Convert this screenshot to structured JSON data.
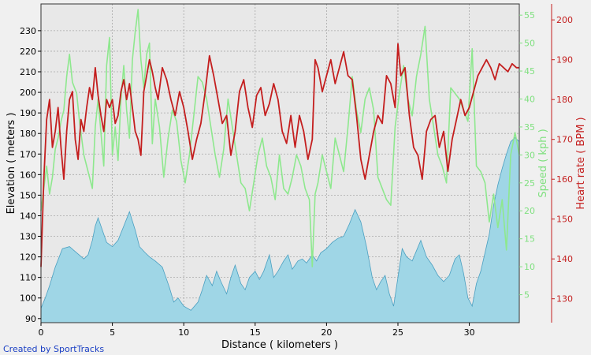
{
  "chart_data": {
    "type": "line",
    "xlabel": "Distance ( kilometers )",
    "xlim": [
      0,
      33.5
    ],
    "x_ticks": [
      0,
      5,
      10,
      15,
      20,
      25,
      30
    ],
    "grid": true,
    "axes": {
      "elevation": {
        "label": "Elevation ( meters )",
        "range": [
          88,
          243
        ],
        "ticks": [
          90,
          100,
          110,
          120,
          130,
          140,
          150,
          160,
          170,
          180,
          190,
          200,
          210,
          220,
          230
        ]
      },
      "speed": {
        "label": "Speed ( kph )",
        "range": [
          0,
          57
        ],
        "ticks": [
          5,
          10,
          15,
          20,
          25,
          30,
          35,
          40,
          45,
          50,
          55
        ]
      },
      "heart_rate": {
        "label": "Heart rate ( BPM )",
        "range": [
          124,
          204
        ],
        "ticks": [
          130,
          140,
          150,
          160,
          170,
          180,
          190,
          200
        ]
      }
    },
    "series": [
      {
        "key": "elevation",
        "kind": "area",
        "axis": "elevation",
        "color": "#9fd6e6",
        "line_color": "#4a9fc0",
        "x": [
          0,
          0.3,
          0.6,
          1.0,
          1.5,
          2.0,
          2.5,
          3.0,
          3.3,
          3.6,
          3.8,
          4.0,
          4.3,
          4.6,
          5.0,
          5.4,
          5.8,
          6.2,
          6.6,
          6.9,
          7.3,
          7.6,
          8.0,
          8.5,
          9.0,
          9.3,
          9.6,
          10.0,
          10.5,
          11.0,
          11.3,
          11.6,
          12.0,
          12.3,
          12.6,
          13.0,
          13.3,
          13.6,
          14.0,
          14.3,
          14.6,
          15.0,
          15.3,
          15.6,
          16.0,
          16.3,
          16.6,
          17.0,
          17.3,
          17.6,
          18.0,
          18.3,
          18.6,
          19.0,
          19.3,
          19.6,
          20.0,
          20.4,
          20.8,
          21.2,
          21.6,
          22.0,
          22.4,
          22.8,
          23.2,
          23.5,
          23.8,
          24.1,
          24.4,
          24.7,
          25.0,
          25.3,
          25.6,
          26.0,
          26.3,
          26.6,
          27.0,
          27.4,
          27.8,
          28.2,
          28.6,
          29.0,
          29.3,
          29.6,
          29.9,
          30.2,
          30.5,
          30.8,
          31.1,
          31.4,
          31.7,
          32.0,
          32.3,
          32.6,
          32.9,
          33.2,
          33.5
        ],
        "values": [
          95,
          100,
          106,
          115,
          124,
          125,
          122,
          119,
          121,
          128,
          135,
          139,
          133,
          127,
          125,
          128,
          135,
          142,
          133,
          125,
          122,
          120,
          118,
          115,
          105,
          98,
          100,
          96,
          94,
          98,
          104,
          111,
          106,
          113,
          108,
          102,
          110,
          116,
          107,
          104,
          110,
          113,
          109,
          113,
          121,
          110,
          113,
          118,
          121,
          114,
          118,
          119,
          117,
          121,
          118,
          122,
          124,
          127,
          129,
          130,
          136,
          143,
          137,
          125,
          110,
          104,
          108,
          111,
          102,
          96,
          110,
          124,
          120,
          118,
          123,
          128,
          120,
          116,
          111,
          108,
          111,
          119,
          121,
          112,
          100,
          96,
          107,
          113,
          122,
          131,
          145,
          155,
          163,
          170,
          176,
          178,
          176
        ]
      },
      {
        "key": "speed",
        "kind": "line",
        "axis": "speed",
        "color": "#8ee88e",
        "x": [
          0,
          0.2,
          0.4,
          0.6,
          0.8,
          1.0,
          1.2,
          1.4,
          1.6,
          1.8,
          2.0,
          2.2,
          2.5,
          2.7,
          3.0,
          3.2,
          3.4,
          3.6,
          3.8,
          4.0,
          4.2,
          4.4,
          4.6,
          4.8,
          5.0,
          5.2,
          5.4,
          5.6,
          5.8,
          6.0,
          6.2,
          6.4,
          6.6,
          6.8,
          7.0,
          7.2,
          7.4,
          7.6,
          7.8,
          8.0,
          8.3,
          8.6,
          8.9,
          9.2,
          9.5,
          9.8,
          10.1,
          10.4,
          10.7,
          11.0,
          11.3,
          11.6,
          11.9,
          12.2,
          12.5,
          12.8,
          13.1,
          13.4,
          13.7,
          14.0,
          14.3,
          14.6,
          14.9,
          15.2,
          15.5,
          15.8,
          16.1,
          16.4,
          16.7,
          17.0,
          17.3,
          17.6,
          17.9,
          18.2,
          18.5,
          18.8,
          19.0,
          19.2,
          19.4,
          19.7,
          20.0,
          20.3,
          20.6,
          20.9,
          21.2,
          21.5,
          21.8,
          22.1,
          22.4,
          22.7,
          23.0,
          23.3,
          23.6,
          23.9,
          24.2,
          24.5,
          24.8,
          25.1,
          25.4,
          25.7,
          26.0,
          26.3,
          26.6,
          26.9,
          27.2,
          27.5,
          27.8,
          28.1,
          28.4,
          28.7,
          29.0,
          29.3,
          29.6,
          29.9,
          30.2,
          30.5,
          30.8,
          31.1,
          31.4,
          31.7,
          32.0,
          32.3,
          32.6,
          32.9,
          33.2,
          33.5
        ],
        "values": [
          20,
          24,
          28,
          23,
          26,
          31,
          33,
          36,
          38,
          44,
          48,
          43,
          41,
          36,
          30,
          28,
          26,
          24,
          35,
          40,
          34,
          28,
          46,
          51,
          30,
          35,
          29,
          40,
          46,
          38,
          33,
          47,
          52,
          56,
          47,
          42,
          48,
          50,
          32,
          40,
          35,
          26,
          33,
          38,
          36,
          29,
          25,
          30,
          37,
          44,
          43,
          40,
          35,
          30,
          26,
          31,
          40,
          35,
          30,
          25,
          24,
          20,
          25,
          30,
          33,
          28,
          26,
          22,
          30,
          24,
          23,
          26,
          30,
          28,
          24,
          22,
          10,
          23,
          25,
          30,
          27,
          24,
          33,
          30,
          27,
          35,
          44,
          38,
          34,
          40,
          42,
          38,
          26,
          24,
          22,
          21,
          35,
          41,
          46,
          40,
          37,
          44,
          48,
          53,
          40,
          35,
          30,
          28,
          25,
          42,
          41,
          40,
          38,
          36,
          49,
          28,
          27,
          25,
          18,
          23,
          17,
          22,
          13,
          30,
          34,
          30
        ],
        "ticks_note": ""
      },
      {
        "key": "heart_rate",
        "kind": "line",
        "axis": "heart_rate",
        "color": "#c41e1e",
        "x": [
          0,
          0.2,
          0.4,
          0.6,
          0.8,
          1.0,
          1.2,
          1.4,
          1.6,
          1.8,
          2.0,
          2.2,
          2.4,
          2.6,
          2.8,
          3.0,
          3.2,
          3.4,
          3.6,
          3.8,
          4.0,
          4.2,
          4.4,
          4.6,
          4.8,
          5.0,
          5.2,
          5.4,
          5.6,
          5.8,
          6.0,
          6.2,
          6.4,
          6.6,
          6.8,
          7.0,
          7.2,
          7.4,
          7.6,
          7.8,
          8.0,
          8.2,
          8.5,
          8.8,
          9.1,
          9.4,
          9.7,
          10.0,
          10.3,
          10.6,
          10.9,
          11.2,
          11.5,
          11.8,
          12.1,
          12.4,
          12.7,
          13.0,
          13.3,
          13.6,
          13.9,
          14.2,
          14.5,
          14.8,
          15.1,
          15.4,
          15.7,
          16.0,
          16.3,
          16.6,
          16.9,
          17.2,
          17.5,
          17.8,
          18.1,
          18.4,
          18.7,
          19.0,
          19.2,
          19.4,
          19.7,
          20.0,
          20.3,
          20.6,
          20.9,
          21.2,
          21.5,
          21.8,
          22.1,
          22.4,
          22.7,
          23.0,
          23.3,
          23.6,
          23.9,
          24.2,
          24.5,
          24.8,
          25.0,
          25.2,
          25.5,
          25.8,
          26.1,
          26.4,
          26.7,
          27.0,
          27.3,
          27.6,
          27.9,
          28.2,
          28.5,
          28.8,
          29.1,
          29.4,
          29.7,
          30.0,
          30.3,
          30.6,
          30.9,
          31.2,
          31.5,
          31.8,
          32.1,
          32.4,
          32.7,
          33.0,
          33.3,
          33.5
        ],
        "values": [
          138,
          160,
          175,
          180,
          168,
          172,
          178,
          168,
          160,
          172,
          180,
          182,
          170,
          165,
          175,
          172,
          178,
          183,
          180,
          188,
          181,
          176,
          172,
          180,
          178,
          180,
          174,
          176,
          182,
          185,
          180,
          184,
          178,
          172,
          170,
          166,
          182,
          186,
          190,
          187,
          183,
          180,
          188,
          185,
          180,
          176,
          182,
          178,
          172,
          165,
          170,
          174,
          182,
          191,
          186,
          180,
          174,
          176,
          166,
          172,
          182,
          185,
          178,
          173,
          181,
          183,
          176,
          179,
          184,
          180,
          172,
          169,
          176,
          168,
          176,
          172,
          165,
          170,
          190,
          188,
          182,
          186,
          190,
          184,
          188,
          192,
          186,
          185,
          176,
          165,
          160,
          166,
          172,
          176,
          174,
          186,
          184,
          178,
          194,
          186,
          188,
          176,
          168,
          166,
          160,
          172,
          175,
          176,
          168,
          172,
          162,
          170,
          175,
          180,
          176,
          178,
          182,
          186,
          188,
          190,
          188,
          185,
          189,
          188,
          187,
          189,
          188,
          188
        ]
      }
    ]
  },
  "credit": "Created by SportTracks"
}
